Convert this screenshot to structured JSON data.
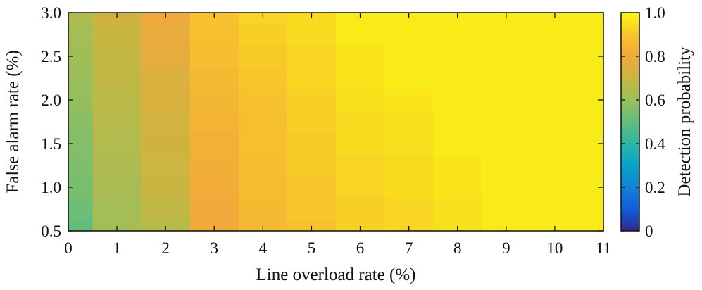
{
  "chart_data": {
    "type": "heatmap",
    "title": "",
    "xlabel": "Line overload rate (%)",
    "ylabel": "False alarm rate (%)",
    "colorbar_label": "Detection probability",
    "x_values": [
      0,
      1,
      2,
      3,
      4,
      5,
      6,
      7,
      8,
      9,
      10,
      11
    ],
    "y_values": [
      0.5,
      0.75,
      1.0,
      1.25,
      1.5,
      1.75,
      2.0,
      2.25,
      2.5,
      2.75,
      3.0
    ],
    "xlim": [
      0,
      11
    ],
    "ylim": [
      0.5,
      3.0
    ],
    "clim": [
      0,
      1.0
    ],
    "x_ticks": [
      "0",
      "1",
      "2",
      "3",
      "4",
      "5",
      "6",
      "7",
      "8",
      "9",
      "10",
      "11"
    ],
    "y_ticks": [
      "0.5",
      "1.0",
      "1.5",
      "2.0",
      "2.5",
      "3.0"
    ],
    "colorbar_ticks": [
      "0",
      "0.2",
      "0.4",
      "0.6",
      "0.8",
      "1.0"
    ],
    "colormap": "parula",
    "z": [
      [
        0.5,
        0.62,
        0.66,
        0.8,
        0.86,
        0.89,
        0.92,
        0.93,
        0.95,
        0.97,
        0.97,
        0.97
      ],
      [
        0.52,
        0.62,
        0.68,
        0.8,
        0.86,
        0.9,
        0.92,
        0.93,
        0.95,
        0.97,
        0.97,
        0.97
      ],
      [
        0.54,
        0.63,
        0.7,
        0.81,
        0.87,
        0.9,
        0.93,
        0.94,
        0.96,
        0.97,
        0.97,
        0.97
      ],
      [
        0.55,
        0.64,
        0.71,
        0.82,
        0.87,
        0.91,
        0.93,
        0.94,
        0.96,
        0.97,
        0.97,
        0.97
      ],
      [
        0.56,
        0.65,
        0.72,
        0.83,
        0.88,
        0.91,
        0.94,
        0.95,
        0.97,
        0.97,
        0.97,
        0.97
      ],
      [
        0.57,
        0.66,
        0.73,
        0.84,
        0.88,
        0.92,
        0.94,
        0.95,
        0.97,
        0.97,
        0.97,
        0.97
      ],
      [
        0.59,
        0.67,
        0.74,
        0.85,
        0.89,
        0.92,
        0.95,
        0.96,
        0.97,
        0.97,
        0.97,
        0.97
      ],
      [
        0.6,
        0.68,
        0.75,
        0.86,
        0.9,
        0.93,
        0.96,
        0.97,
        0.97,
        0.97,
        0.97,
        0.97
      ],
      [
        0.61,
        0.69,
        0.77,
        0.87,
        0.91,
        0.93,
        0.96,
        0.97,
        0.97,
        0.97,
        0.97,
        0.97
      ],
      [
        0.62,
        0.7,
        0.78,
        0.88,
        0.92,
        0.94,
        0.97,
        0.97,
        0.97,
        0.97,
        0.97,
        0.97
      ],
      [
        0.64,
        0.72,
        0.8,
        0.89,
        0.93,
        0.94,
        0.97,
        0.97,
        0.97,
        0.97,
        0.97,
        0.97
      ]
    ]
  }
}
